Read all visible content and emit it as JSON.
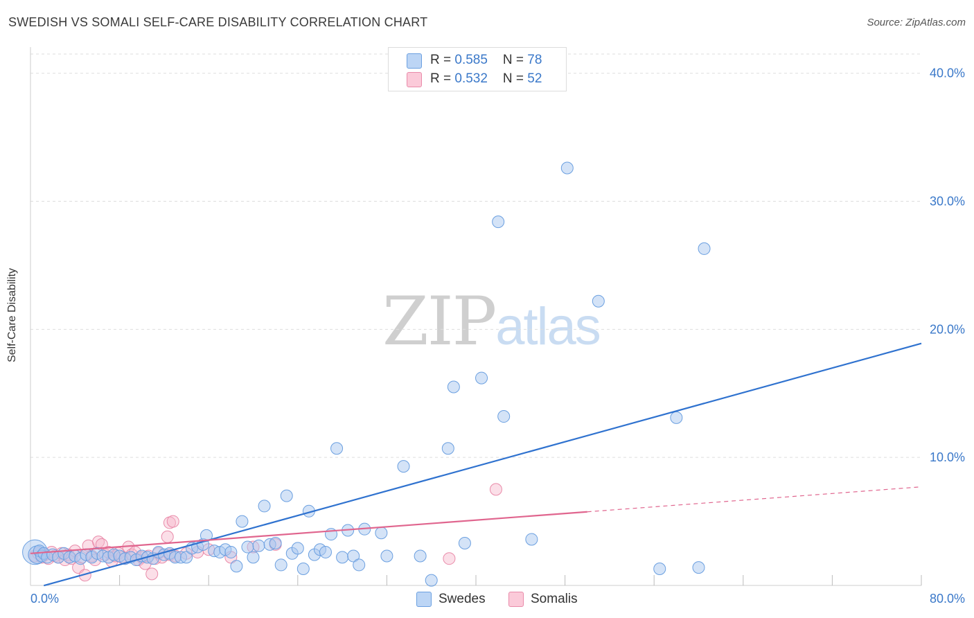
{
  "header": {
    "title": "SWEDISH VS SOMALI SELF-CARE DISABILITY CORRELATION CHART",
    "source": "Source: ZipAtlas.com"
  },
  "legend": {
    "swedes": {
      "r_label": "R = ",
      "r_value": "0.585",
      "n_label": "N = ",
      "n_value": "78"
    },
    "somalis": {
      "r_label": "R = ",
      "r_value": "0.532",
      "n_label": "N = ",
      "n_value": "52"
    }
  },
  "bottom_legend": {
    "swedes": "Swedes",
    "somalis": "Somalis"
  },
  "watermark": {
    "zip": "ZIP",
    "atlas": "atlas"
  },
  "colors": {
    "swedes_fill": "#a9c8f0",
    "swedes_stroke": "#6a9fe0",
    "swedes_line": "#2f72cf",
    "somalis_fill": "#f7b8cc",
    "somalis_stroke": "#e98aa9",
    "somalis_line": "#e0658e",
    "tick_text": "#3a78c9",
    "grid": "#dddddd"
  },
  "chart_data": {
    "type": "scatter",
    "title": "SWEDISH VS SOMALI SELF-CARE DISABILITY CORRELATION CHART",
    "xlabel": "",
    "ylabel": "Self-Care Disability",
    "xlim": [
      0,
      80
    ],
    "ylim": [
      0,
      41.5
    ],
    "x_tick_labels": [
      {
        "value": 0,
        "label": "0.0%"
      },
      {
        "value": 80,
        "label": "80.0%"
      }
    ],
    "y_tick_labels": [
      {
        "value": 10,
        "label": "10.0%"
      },
      {
        "value": 20,
        "label": "20.0%"
      },
      {
        "value": 30,
        "label": "30.0%"
      },
      {
        "value": 40,
        "label": "40.0%"
      }
    ],
    "x_minor_ticks": [
      8,
      16,
      24,
      32,
      40,
      48,
      56,
      64,
      72,
      80
    ],
    "grid": true,
    "legend_position": "top-center",
    "series": [
      {
        "name": "Swedes",
        "R": 0.585,
        "N": 78,
        "trend": {
          "x": [
            0,
            80
          ],
          "y": [
            -0.3,
            18.9
          ],
          "dashed_x": null
        },
        "points": [
          [
            0.4,
            2.6,
            2.1
          ],
          [
            0.6,
            2.4,
            1.5
          ],
          [
            0.8,
            2.7,
            1.0
          ],
          [
            1.0,
            2.3,
            1.0
          ],
          [
            1.2,
            2.5,
            1.0
          ],
          [
            1.5,
            2.2,
            1.0
          ],
          [
            2.0,
            2.4,
            1.0
          ],
          [
            2.5,
            2.2,
            1.0
          ],
          [
            3.0,
            2.5,
            1.0
          ],
          [
            3.5,
            2.2,
            1.0
          ],
          [
            4.0,
            2.3,
            1.0
          ],
          [
            4.5,
            2.1,
            1.0
          ],
          [
            5.0,
            2.4,
            1.0
          ],
          [
            5.5,
            2.2,
            1.0
          ],
          [
            6.0,
            2.5,
            1.0
          ],
          [
            6.5,
            2.3,
            1.0
          ],
          [
            7.0,
            2.2,
            1.0
          ],
          [
            7.5,
            2.4,
            1.0
          ],
          [
            8.0,
            2.3,
            1.0
          ],
          [
            8.5,
            2.1,
            1.0
          ],
          [
            9.0,
            2.2,
            1.0
          ],
          [
            9.5,
            2.0,
            1.0
          ],
          [
            10.0,
            2.3,
            1.0
          ],
          [
            10.5,
            2.2,
            1.0
          ],
          [
            11.0,
            2.1,
            1.0
          ],
          [
            11.5,
            2.6,
            1.0
          ],
          [
            12.0,
            2.4,
            1.0
          ],
          [
            12.5,
            2.5,
            1.0
          ],
          [
            13.0,
            2.2,
            1.0
          ],
          [
            13.5,
            2.2,
            1.0
          ],
          [
            14.0,
            2.2,
            1.0
          ],
          [
            14.5,
            2.9,
            1.0
          ],
          [
            15.0,
            3.0,
            1.0
          ],
          [
            15.5,
            3.2,
            1.0
          ],
          [
            15.8,
            3.9,
            1.0
          ],
          [
            16.5,
            2.7,
            1.0
          ],
          [
            17.0,
            2.6,
            1.0
          ],
          [
            17.5,
            2.8,
            1.0
          ],
          [
            18.0,
            2.6,
            1.0
          ],
          [
            18.5,
            1.5,
            1.0
          ],
          [
            19.0,
            5.0,
            1.0
          ],
          [
            19.5,
            3.0,
            1.0
          ],
          [
            20.0,
            2.2,
            1.0
          ],
          [
            20.5,
            3.1,
            1.0
          ],
          [
            21.0,
            6.2,
            1.0
          ],
          [
            21.5,
            3.2,
            1.0
          ],
          [
            22.0,
            3.3,
            1.0
          ],
          [
            22.5,
            1.6,
            1.0
          ],
          [
            23.0,
            7.0,
            1.0
          ],
          [
            23.5,
            2.5,
            1.0
          ],
          [
            24.0,
            2.9,
            1.0
          ],
          [
            24.5,
            1.3,
            1.0
          ],
          [
            25.0,
            5.8,
            1.0
          ],
          [
            25.5,
            2.4,
            1.0
          ],
          [
            26.0,
            2.8,
            1.0
          ],
          [
            26.5,
            2.6,
            1.0
          ],
          [
            27.0,
            4.0,
            1.0
          ],
          [
            27.5,
            10.7,
            1.0
          ],
          [
            28.0,
            2.2,
            1.0
          ],
          [
            28.5,
            4.3,
            1.0
          ],
          [
            29.0,
            2.3,
            1.0
          ],
          [
            29.5,
            1.6,
            1.0
          ],
          [
            30.0,
            4.4,
            1.0
          ],
          [
            31.5,
            4.1,
            1.0
          ],
          [
            32.0,
            2.3,
            1.0
          ],
          [
            33.5,
            9.3,
            1.0
          ],
          [
            35.0,
            2.3,
            1.0
          ],
          [
            36.0,
            0.4,
            1.0
          ],
          [
            37.5,
            10.7,
            1.0
          ],
          [
            38.0,
            15.5,
            1.0
          ],
          [
            39.0,
            3.3,
            1.0
          ],
          [
            40.5,
            16.2,
            1.0
          ],
          [
            42.0,
            28.4,
            1.0
          ],
          [
            42.5,
            13.2,
            1.0
          ],
          [
            45.0,
            3.6,
            1.0
          ],
          [
            48.2,
            32.6,
            1.0
          ],
          [
            51.0,
            22.2,
            1.0
          ],
          [
            56.5,
            1.3,
            1.0
          ],
          [
            58.0,
            13.1,
            1.0
          ],
          [
            60.0,
            1.4,
            1.0
          ],
          [
            60.5,
            26.3,
            1.0
          ]
        ]
      },
      {
        "name": "Somalis",
        "R": 0.532,
        "N": 52,
        "trend": {
          "x": [
            0,
            80
          ],
          "y": [
            2.5,
            7.7
          ],
          "solid_until_x": 50
        },
        "points": [
          [
            0.4,
            2.3,
            1.0
          ],
          [
            0.7,
            2.5,
            1.0
          ],
          [
            1.0,
            2.2,
            1.0
          ],
          [
            1.3,
            2.4,
            1.0
          ],
          [
            1.6,
            2.1,
            1.0
          ],
          [
            1.9,
            2.6,
            1.0
          ],
          [
            2.2,
            2.3,
            1.0
          ],
          [
            2.5,
            2.2,
            1.0
          ],
          [
            2.8,
            2.5,
            1.0
          ],
          [
            3.1,
            2.0,
            1.0
          ],
          [
            3.4,
            2.4,
            1.0
          ],
          [
            3.7,
            2.1,
            1.0
          ],
          [
            4.0,
            2.7,
            1.0
          ],
          [
            4.3,
            1.4,
            1.0
          ],
          [
            4.6,
            2.2,
            1.0
          ],
          [
            4.9,
            0.8,
            1.0
          ],
          [
            5.2,
            3.1,
            1.0
          ],
          [
            5.5,
            2.3,
            1.0
          ],
          [
            5.8,
            2.0,
            1.0
          ],
          [
            6.1,
            3.4,
            1.0
          ],
          [
            6.4,
            3.2,
            1.0
          ],
          [
            6.7,
            2.4,
            1.0
          ],
          [
            7.0,
            2.6,
            1.0
          ],
          [
            7.3,
            1.9,
            1.0
          ],
          [
            7.6,
            2.3,
            1.0
          ],
          [
            7.9,
            2.5,
            1.0
          ],
          [
            8.2,
            2.2,
            1.0
          ],
          [
            8.5,
            2.1,
            1.0
          ],
          [
            8.8,
            3.0,
            1.0
          ],
          [
            9.1,
            2.4,
            1.0
          ],
          [
            9.4,
            2.6,
            1.0
          ],
          [
            9.7,
            2.0,
            1.0
          ],
          [
            10.0,
            2.2,
            1.0
          ],
          [
            10.3,
            1.7,
            1.0
          ],
          [
            10.6,
            2.3,
            1.0
          ],
          [
            10.9,
            0.9,
            1.0
          ],
          [
            11.2,
            2.1,
            1.0
          ],
          [
            11.5,
            2.5,
            1.0
          ],
          [
            11.8,
            2.2,
            1.0
          ],
          [
            12.5,
            2.4,
            1.0
          ],
          [
            12.3,
            3.8,
            1.0
          ],
          [
            12.5,
            4.9,
            1.0
          ],
          [
            12.8,
            5.0,
            1.0
          ],
          [
            13.0,
            2.3,
            1.0
          ],
          [
            14.0,
            2.5,
            1.0
          ],
          [
            15.0,
            2.6,
            1.0
          ],
          [
            16.0,
            2.8,
            1.0
          ],
          [
            18.0,
            2.2,
            1.0
          ],
          [
            20.0,
            3.0,
            1.0
          ],
          [
            22.0,
            3.2,
            1.0
          ],
          [
            37.6,
            2.1,
            1.0
          ],
          [
            41.8,
            7.5,
            1.0
          ]
        ]
      }
    ]
  }
}
